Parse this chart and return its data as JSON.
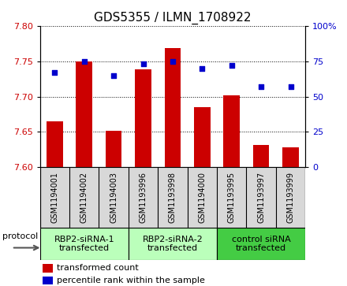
{
  "title": "GDS5355 / ILMN_1708922",
  "samples": [
    "GSM1194001",
    "GSM1194002",
    "GSM1194003",
    "GSM1193996",
    "GSM1193998",
    "GSM1194000",
    "GSM1193995",
    "GSM1193997",
    "GSM1193999"
  ],
  "bar_values": [
    7.665,
    7.75,
    7.652,
    7.738,
    7.768,
    7.685,
    7.702,
    7.632,
    7.628
  ],
  "dot_values": [
    67,
    75,
    65,
    73,
    75,
    70,
    72,
    57,
    57
  ],
  "ylim_left": [
    7.6,
    7.8
  ],
  "ylim_right": [
    0,
    100
  ],
  "yticks_left": [
    7.6,
    7.65,
    7.7,
    7.75,
    7.8
  ],
  "yticks_right": [
    0,
    25,
    50,
    75,
    100
  ],
  "bar_color": "#cc0000",
  "dot_color": "#0000cc",
  "bar_bottom": 7.6,
  "groups": [
    {
      "label": "RBP2-siRNA-1\ntransfected",
      "indices": [
        0,
        1,
        2
      ],
      "color": "#bbffbb"
    },
    {
      "label": "RBP2-siRNA-2\ntransfected",
      "indices": [
        3,
        4,
        5
      ],
      "color": "#bbffbb"
    },
    {
      "label": "control siRNA\ntransfected",
      "indices": [
        6,
        7,
        8
      ],
      "color": "#44cc44"
    }
  ],
  "protocol_label": "protocol",
  "legend_bar_label": "transformed count",
  "legend_dot_label": "percentile rank within the sample",
  "background_color": "#ffffff",
  "sample_box_color": "#d8d8d8",
  "title_fontsize": 11,
  "tick_fontsize": 8,
  "sample_fontsize": 7,
  "group_fontsize": 8,
  "legend_fontsize": 8
}
